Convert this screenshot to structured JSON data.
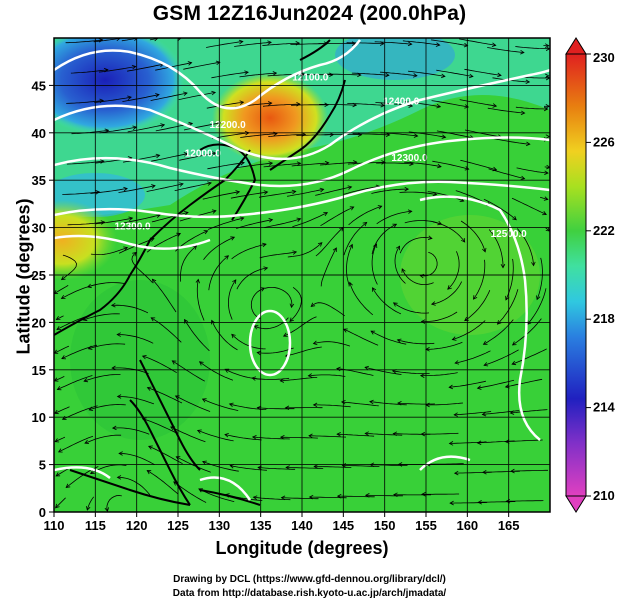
{
  "title": "GSM 12Z16Jun2024 (200.0hPa)",
  "xaxis": {
    "label": "Longitude (degrees)",
    "range": [
      110,
      170
    ],
    "ticks": [
      110,
      115,
      120,
      125,
      130,
      135,
      140,
      145,
      150,
      155,
      160,
      165
    ]
  },
  "yaxis": {
    "label": "Latitude  (degrees)",
    "range": [
      0,
      50
    ],
    "ticks": [
      0,
      5,
      10,
      15,
      20,
      25,
      30,
      35,
      40,
      45
    ]
  },
  "colorbar": {
    "range": [
      210,
      230
    ],
    "ticks": [
      210,
      214,
      218,
      222,
      226,
      230
    ],
    "colors": [
      "#e040c0",
      "#2020c0",
      "#2a9fe0",
      "#40e0b0",
      "#40d040",
      "#a8e020",
      "#f0c020",
      "#e86010",
      "#e02020"
    ]
  },
  "contour_labels": [
    {
      "text": "12300.0",
      "lon": 119.5,
      "lat": 29.8
    },
    {
      "text": "12200.0",
      "lon": 131,
      "lat": 40.5
    },
    {
      "text": "12100.0",
      "lon": 141,
      "lat": 45.5
    },
    {
      "text": "12000.0",
      "lon": 128,
      "lat": 37.5
    },
    {
      "text": "12400.0",
      "lon": 152,
      "lat": 43
    },
    {
      "text": "12300.0",
      "lon": 153,
      "lat": 37
    },
    {
      "text": "12500.0",
      "lon": 165,
      "lat": 29
    }
  ],
  "credits": {
    "line1": "Drawing by DCL (https://www.gfd-dennou.org/library/dcl/)",
    "line2": "Data from http://database.rish.kyoto-u.ac.jp/arch/jmadata/"
  }
}
